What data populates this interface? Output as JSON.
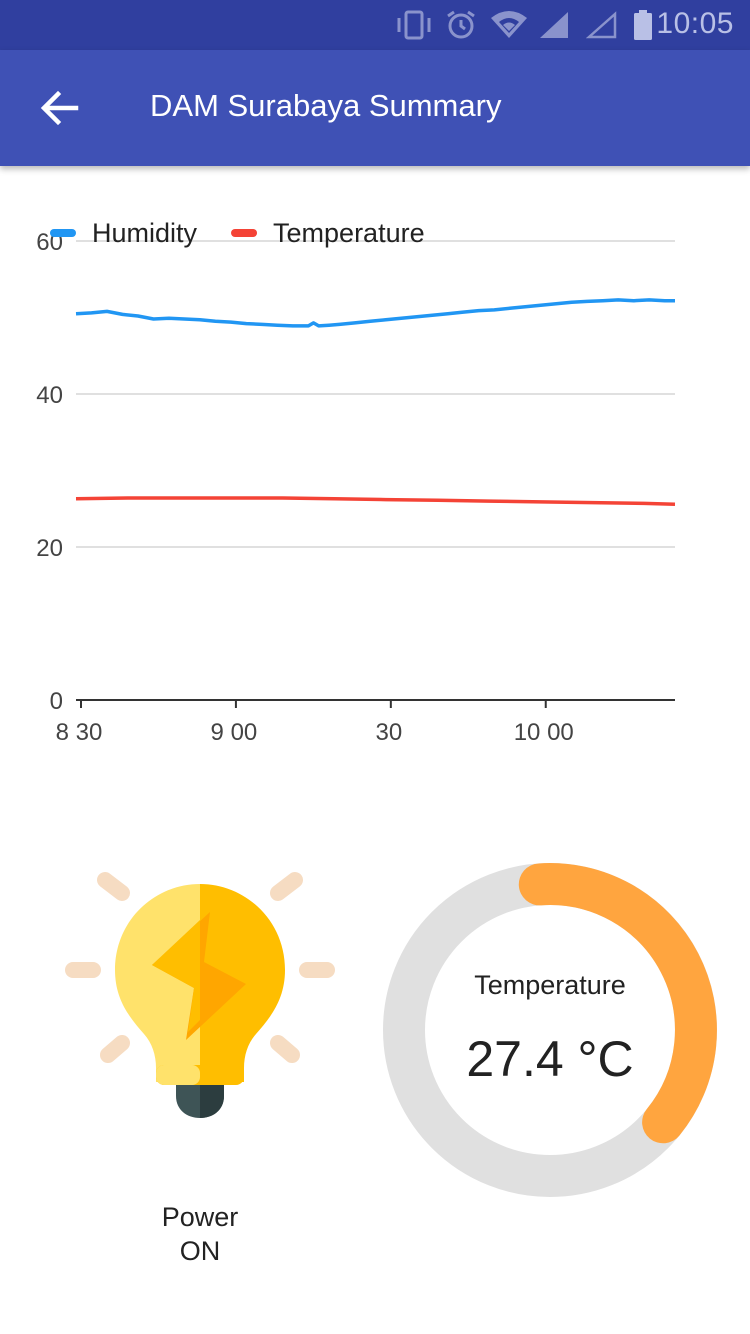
{
  "status_bar": {
    "time": "10:05",
    "icons": [
      "vibrate-icon",
      "alarm-icon",
      "wifi-icon",
      "signal-icon",
      "signal-empty-icon",
      "battery-icon"
    ]
  },
  "app_bar": {
    "title": "DAM Surabaya Summary",
    "back_icon": "arrow-back-icon"
  },
  "chart_data": {
    "type": "line",
    "y_ticks": [
      "0",
      "20",
      "40",
      "60"
    ],
    "ylim": [
      0,
      60
    ],
    "x_ticks": [
      {
        "label": "8 30",
        "t": 0
      },
      {
        "label": "9 00",
        "t": 30
      },
      {
        "label": "30",
        "t": 60
      },
      {
        "label": "10 00",
        "t": 90
      }
    ],
    "x_range": [
      0,
      116
    ],
    "grid": true,
    "legend_position": "top-left",
    "series": [
      {
        "name": "Humidity",
        "color": "#2196F3",
        "t": [
          0,
          3,
          6,
          9,
          12,
          15,
          18,
          21,
          24,
          27,
          30,
          33,
          36,
          39,
          42,
          45,
          46,
          47,
          49,
          51,
          54,
          57,
          60,
          63,
          66,
          69,
          72,
          75,
          78,
          81,
          84,
          87,
          90,
          93,
          96,
          99,
          102,
          105,
          108,
          111,
          114,
          116
        ],
        "values": [
          50.5,
          50.6,
          50.8,
          50.4,
          50.2,
          49.8,
          49.9,
          49.8,
          49.7,
          49.5,
          49.4,
          49.2,
          49.1,
          49.0,
          48.9,
          48.9,
          49.3,
          48.9,
          49.0,
          49.1,
          49.3,
          49.5,
          49.7,
          49.9,
          50.1,
          50.3,
          50.5,
          50.7,
          50.9,
          51.0,
          51.2,
          51.4,
          51.6,
          51.8,
          52.0,
          52.1,
          52.2,
          52.3,
          52.2,
          52.3,
          52.2,
          52.2
        ]
      },
      {
        "name": "Temperature",
        "color": "#F44336",
        "t": [
          0,
          10,
          20,
          30,
          40,
          50,
          60,
          70,
          80,
          90,
          100,
          110,
          116
        ],
        "values": [
          26.3,
          26.4,
          26.4,
          26.4,
          26.4,
          26.3,
          26.2,
          26.1,
          26.0,
          25.9,
          25.8,
          25.7,
          25.6
        ]
      }
    ]
  },
  "power": {
    "icon": "lightbulb-icon",
    "label_line1": "Power",
    "label_line2": "ON"
  },
  "gauge": {
    "title": "Temperature",
    "value": 27.4,
    "display": "27.4 °C",
    "fill_fraction": 0.37,
    "track_color": "#E0E0E0",
    "fill_color": "#FFA53F"
  }
}
